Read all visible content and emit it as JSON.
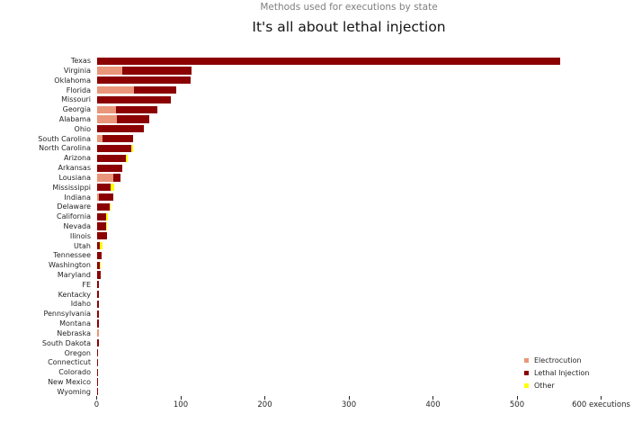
{
  "header": {
    "suptitle": "Methods used for executions by state",
    "title": "It's all about lethal injection"
  },
  "chart_data": {
    "type": "bar",
    "orientation": "horizontal",
    "stacked": true,
    "title": "It's all about lethal injection",
    "subtitle": "Methods used for executions by state",
    "xlabel": "executions",
    "xlim": [
      0,
      648
    ],
    "grid": false,
    "legend_position": "lower right",
    "x_ticks": [
      {
        "value": 0,
        "label": "0"
      },
      {
        "value": 100,
        "label": "100"
      },
      {
        "value": 200,
        "label": "200"
      },
      {
        "value": 300,
        "label": "300"
      },
      {
        "value": 400,
        "label": "400"
      },
      {
        "value": 500,
        "label": "500"
      },
      {
        "value": 600,
        "label": "600 executions"
      }
    ],
    "series_order": [
      "electrocution",
      "lethal_injection",
      "other"
    ],
    "colors": {
      "electrocution": "#e9967a",
      "lethal_injection": "#8b0000",
      "other": "#ffff00"
    },
    "legend": [
      {
        "key": "electrocution",
        "label": "Electrocution",
        "color": "#e9967a"
      },
      {
        "key": "lethal_injection",
        "label": "Lethal Injection",
        "color": "#8b0000"
      },
      {
        "key": "other",
        "label": "Other",
        "color": "#ffff00"
      }
    ],
    "states": [
      {
        "name": "Texas",
        "electrocution": 0,
        "lethal_injection": 551,
        "other": 0
      },
      {
        "name": "Virginia",
        "electrocution": 31,
        "lethal_injection": 82,
        "other": 0
      },
      {
        "name": "Oklahoma",
        "electrocution": 0,
        "lethal_injection": 112,
        "other": 0
      },
      {
        "name": "Florida",
        "electrocution": 44,
        "lethal_injection": 51,
        "other": 0
      },
      {
        "name": "Missouri",
        "electrocution": 0,
        "lethal_injection": 88,
        "other": 0
      },
      {
        "name": "Georgia",
        "electrocution": 23,
        "lethal_injection": 49,
        "other": 0
      },
      {
        "name": "Alabama",
        "electrocution": 24,
        "lethal_injection": 39,
        "other": 0
      },
      {
        "name": "Ohio",
        "electrocution": 0,
        "lethal_injection": 56,
        "other": 0
      },
      {
        "name": "South Carolina",
        "electrocution": 7,
        "lethal_injection": 36,
        "other": 0
      },
      {
        "name": "North Carolina",
        "electrocution": 0,
        "lethal_injection": 41,
        "other": 2
      },
      {
        "name": "Arizona",
        "electrocution": 0,
        "lethal_injection": 35,
        "other": 2
      },
      {
        "name": "Arkansas",
        "electrocution": 0,
        "lethal_injection": 31,
        "other": 0
      },
      {
        "name": "Lousiana",
        "electrocution": 20,
        "lethal_injection": 8,
        "other": 0
      },
      {
        "name": "Mississippi",
        "electrocution": 0,
        "lethal_injection": 17,
        "other": 4
      },
      {
        "name": "Indiana",
        "electrocution": 3,
        "lethal_injection": 17,
        "other": 0
      },
      {
        "name": "Delaware",
        "electrocution": 0,
        "lethal_injection": 15,
        "other": 1
      },
      {
        "name": "California",
        "electrocution": 0,
        "lethal_injection": 11,
        "other": 2
      },
      {
        "name": "Nevada",
        "electrocution": 0,
        "lethal_injection": 11,
        "other": 1
      },
      {
        "name": "Ilinois",
        "electrocution": 0,
        "lethal_injection": 12,
        "other": 0
      },
      {
        "name": "Utah",
        "electrocution": 0,
        "lethal_injection": 4,
        "other": 3
      },
      {
        "name": "Tennessee",
        "electrocution": 0,
        "lethal_injection": 6,
        "other": 0
      },
      {
        "name": "Washington",
        "electrocution": 0,
        "lethal_injection": 4,
        "other": 1
      },
      {
        "name": "Maryland",
        "electrocution": 0,
        "lethal_injection": 5,
        "other": 0
      },
      {
        "name": "FE",
        "electrocution": 0,
        "lethal_injection": 3,
        "other": 0
      },
      {
        "name": "Kentacky",
        "electrocution": 0,
        "lethal_injection": 3,
        "other": 0
      },
      {
        "name": "Idaho",
        "electrocution": 0,
        "lethal_injection": 3,
        "other": 0
      },
      {
        "name": "Pennsylvania",
        "electrocution": 0,
        "lethal_injection": 3,
        "other": 0
      },
      {
        "name": "Montana",
        "electrocution": 0,
        "lethal_injection": 3,
        "other": 0
      },
      {
        "name": "Nebraska",
        "electrocution": 3,
        "lethal_injection": 0,
        "other": 0
      },
      {
        "name": "South Dakota",
        "electrocution": 0,
        "lethal_injection": 3,
        "other": 0
      },
      {
        "name": "Oregon",
        "electrocution": 0,
        "lethal_injection": 2,
        "other": 0
      },
      {
        "name": "Connecticut",
        "electrocution": 0,
        "lethal_injection": 1,
        "other": 0
      },
      {
        "name": "Colorado",
        "electrocution": 0,
        "lethal_injection": 1,
        "other": 0
      },
      {
        "name": "New Mexico",
        "electrocution": 0,
        "lethal_injection": 1,
        "other": 0
      },
      {
        "name": "Wyoming",
        "electrocution": 0,
        "lethal_injection": 1,
        "other": 0
      }
    ]
  }
}
